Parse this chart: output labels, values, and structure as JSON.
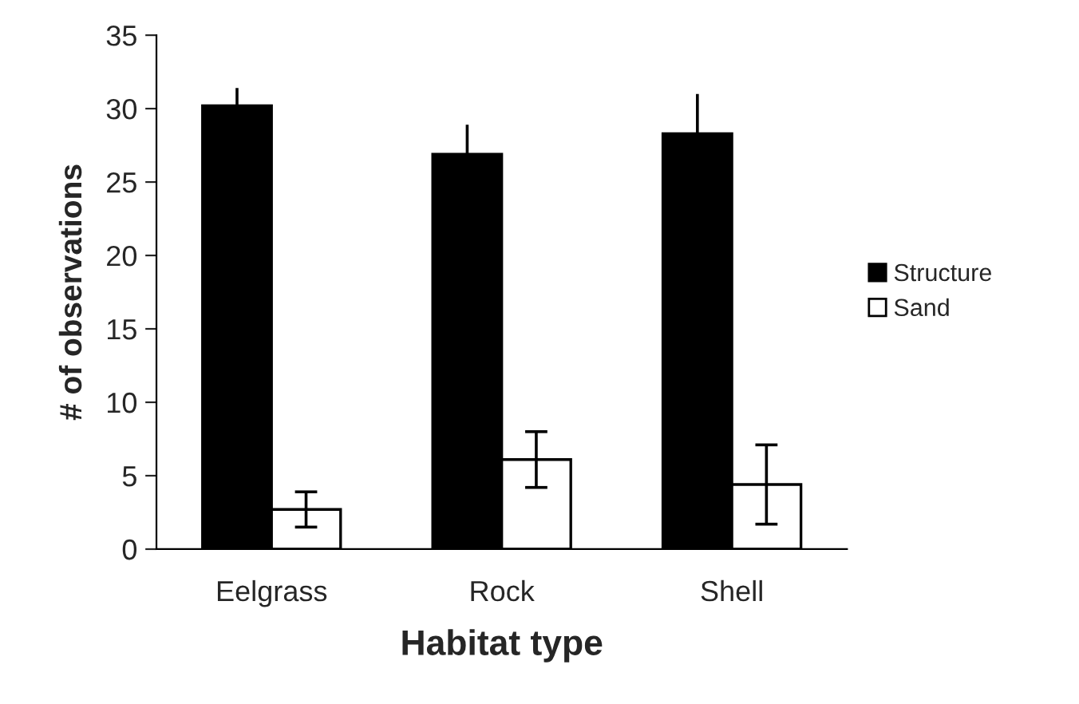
{
  "chart_data": {
    "type": "bar",
    "xlabel": "Habitat type",
    "ylabel": "# of observations",
    "categories": [
      "Eelgrass",
      "Rock",
      "Shell"
    ],
    "series": [
      {
        "name": "Structure",
        "color": "#000000",
        "values": [
          30.2,
          26.9,
          28.3
        ],
        "errors": [
          1.2,
          2.0,
          2.7
        ]
      },
      {
        "name": "Sand",
        "color": "#ffffff",
        "values": [
          2.7,
          6.1,
          4.4
        ],
        "errors": [
          1.2,
          1.9,
          2.7
        ]
      }
    ],
    "ylim": [
      0,
      35
    ],
    "yticks": [
      0,
      5,
      10,
      15,
      20,
      25,
      30,
      35
    ],
    "grid": false,
    "legend": "right"
  }
}
